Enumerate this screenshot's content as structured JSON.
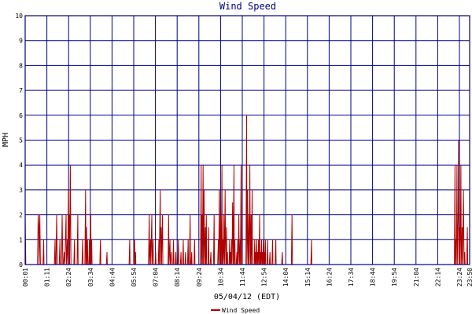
{
  "chart_data": {
    "type": "line",
    "title": "Wind Speed",
    "xlabel": "05/04/12 (EDT)",
    "ylabel": "MPH",
    "ylim": [
      0,
      10
    ],
    "yticks": [
      "0",
      "1",
      "2",
      "3",
      "4",
      "5",
      "6",
      "7",
      "8",
      "9",
      "10"
    ],
    "xticks": [
      "00:01",
      "01:11",
      "02:24",
      "03:34",
      "04:44",
      "05:54",
      "07:04",
      "08:14",
      "09:24",
      "10:34",
      "11:44",
      "12:54",
      "14:04",
      "15:14",
      "16:24",
      "17:34",
      "18:44",
      "19:54",
      "21:04",
      "22:14",
      "23:24",
      "23:50"
    ],
    "grid": true,
    "legend_position": "bottom-center",
    "colors": {
      "series": "#b00000",
      "grid": "#000080",
      "title": "#000080"
    },
    "series": [
      {
        "name": "Wind Speed",
        "x_unit": "minutes since 00:01",
        "points": [
          [
            0,
            2
          ],
          [
            2,
            0
          ],
          [
            38,
            0
          ],
          [
            40,
            2
          ],
          [
            42,
            1.5
          ],
          [
            43,
            0
          ],
          [
            45,
            2
          ],
          [
            47,
            0
          ],
          [
            55,
            0
          ],
          [
            57,
            1
          ],
          [
            58,
            0
          ],
          [
            90,
            0
          ],
          [
            92,
            1
          ],
          [
            93,
            0
          ],
          [
            95,
            0
          ],
          [
            97,
            2
          ],
          [
            99,
            0
          ],
          [
            105,
            0
          ],
          [
            107,
            1
          ],
          [
            108,
            0
          ],
          [
            112,
            0
          ],
          [
            114,
            2
          ],
          [
            116,
            0
          ],
          [
            118,
            0
          ],
          [
            120,
            0.5
          ],
          [
            122,
            0
          ],
          [
            126,
            2
          ],
          [
            127,
            0
          ],
          [
            130,
            1
          ],
          [
            131,
            0
          ],
          [
            133,
            3
          ],
          [
            134,
            1
          ],
          [
            136,
            2
          ],
          [
            137,
            0
          ],
          [
            139,
            4
          ],
          [
            140,
            2
          ],
          [
            141,
            0
          ],
          [
            150,
            0
          ],
          [
            152,
            1
          ],
          [
            153,
            0
          ],
          [
            160,
            0
          ],
          [
            162,
            2
          ],
          [
            163,
            0
          ],
          [
            175,
            0
          ],
          [
            177,
            1
          ],
          [
            178,
            0
          ],
          [
            184,
            0
          ],
          [
            186,
            3
          ],
          [
            187,
            0
          ],
          [
            189,
            1.5
          ],
          [
            190,
            0
          ],
          [
            192,
            1
          ],
          [
            193,
            0
          ],
          [
            196,
            0
          ],
          [
            198,
            1
          ],
          [
            199,
            0
          ],
          [
            202,
            2
          ],
          [
            203,
            0
          ],
          [
            205,
            1
          ],
          [
            206,
            0
          ],
          [
            230,
            0
          ],
          [
            232,
            1
          ],
          [
            233,
            0
          ],
          [
            250,
            0
          ],
          [
            252,
            0.5
          ],
          [
            253,
            0
          ],
          [
            320,
            0
          ],
          [
            322,
            1
          ],
          [
            323,
            0
          ],
          [
            335,
            0
          ],
          [
            337,
            1
          ],
          [
            338,
            0
          ],
          [
            340,
            0.5
          ],
          [
            341,
            0
          ],
          [
            380,
            0
          ],
          [
            382,
            2
          ],
          [
            383,
            0
          ],
          [
            386,
            1
          ],
          [
            387,
            0
          ],
          [
            390,
            2
          ],
          [
            391,
            0
          ],
          [
            394,
            1
          ],
          [
            395,
            0
          ],
          [
            400,
            0
          ],
          [
            402,
            0.5
          ],
          [
            403,
            0
          ],
          [
            410,
            0
          ],
          [
            412,
            1
          ],
          [
            413,
            0
          ],
          [
            416,
            3
          ],
          [
            417,
            0
          ],
          [
            419,
            1.5
          ],
          [
            420,
            0
          ],
          [
            423,
            2
          ],
          [
            424,
            0
          ],
          [
            440,
            0
          ],
          [
            442,
            2
          ],
          [
            443,
            0
          ],
          [
            446,
            1
          ],
          [
            447,
            0
          ],
          [
            450,
            0.5
          ],
          [
            451,
            0
          ],
          [
            455,
            0
          ],
          [
            457,
            1
          ],
          [
            458,
            0
          ],
          [
            462,
            0
          ],
          [
            464,
            0.5
          ],
          [
            465,
            0
          ],
          [
            470,
            0
          ],
          [
            472,
            1
          ],
          [
            473,
            0
          ],
          [
            478,
            0
          ],
          [
            480,
            0.5
          ],
          [
            481,
            0
          ],
          [
            485,
            0
          ],
          [
            487,
            1
          ],
          [
            488,
            0
          ],
          [
            492,
            0
          ],
          [
            494,
            0.5
          ],
          [
            495,
            0
          ],
          [
            500,
            0
          ],
          [
            502,
            1
          ],
          [
            503,
            0
          ],
          [
            506,
            0
          ],
          [
            508,
            2
          ],
          [
            509,
            0
          ],
          [
            511,
            0
          ],
          [
            513,
            0.5
          ],
          [
            514,
            0
          ],
          [
            520,
            0
          ],
          [
            522,
            1
          ],
          [
            523,
            0
          ],
          [
            540,
            0
          ],
          [
            542,
            4
          ],
          [
            543,
            0
          ],
          [
            545,
            2
          ],
          [
            546,
            0
          ],
          [
            548,
            4
          ],
          [
            549,
            0
          ],
          [
            551,
            3
          ],
          [
            552,
            1
          ],
          [
            553,
            0
          ],
          [
            555,
            1.5
          ],
          [
            556,
            0
          ],
          [
            558,
            2
          ],
          [
            559,
            0
          ],
          [
            563,
            0
          ],
          [
            565,
            1.5
          ],
          [
            566,
            0
          ],
          [
            570,
            0
          ],
          [
            572,
            0.5
          ],
          [
            573,
            0
          ],
          [
            580,
            0
          ],
          [
            582,
            2
          ],
          [
            583,
            0
          ],
          [
            593,
            0
          ],
          [
            595,
            1
          ],
          [
            596,
            0
          ],
          [
            598,
            3
          ],
          [
            599,
            1
          ],
          [
            600,
            0
          ],
          [
            602,
            2
          ],
          [
            603,
            0.5
          ],
          [
            604,
            0
          ],
          [
            606,
            4
          ],
          [
            607,
            0
          ],
          [
            609,
            1
          ],
          [
            610,
            0
          ],
          [
            612,
            2
          ],
          [
            613,
            0.5
          ],
          [
            614,
            0
          ],
          [
            616,
            3
          ],
          [
            617,
            1
          ],
          [
            618,
            0
          ],
          [
            620,
            1.5
          ],
          [
            621,
            0
          ],
          [
            623,
            0.5
          ],
          [
            624,
            0
          ],
          [
            628,
            0
          ],
          [
            630,
            1
          ],
          [
            631,
            0
          ],
          [
            633,
            0.5
          ],
          [
            634,
            0
          ],
          [
            636,
            1
          ],
          [
            637,
            0
          ],
          [
            639,
            2.5
          ],
          [
            640,
            1
          ],
          [
            641,
            0
          ],
          [
            643,
            4
          ],
          [
            644,
            0
          ],
          [
            646,
            1
          ],
          [
            647,
            0
          ],
          [
            650,
            0
          ],
          [
            652,
            0.5
          ],
          [
            653,
            0
          ],
          [
            655,
            1
          ],
          [
            656,
            0
          ],
          [
            658,
            2
          ],
          [
            659,
            0.5
          ],
          [
            660,
            0
          ],
          [
            662,
            1
          ],
          [
            663,
            0
          ],
          [
            665,
            4
          ],
          [
            666,
            0
          ],
          [
            668,
            0.5
          ],
          [
            669,
            0
          ],
          [
            680,
            0
          ],
          [
            682,
            6
          ],
          [
            683,
            0
          ],
          [
            685,
            3
          ],
          [
            686,
            1
          ],
          [
            687,
            0
          ],
          [
            689,
            2
          ],
          [
            690,
            0
          ],
          [
            692,
            4
          ],
          [
            693,
            1.5
          ],
          [
            694,
            0
          ],
          [
            696,
            2
          ],
          [
            697,
            0
          ],
          [
            699,
            3
          ],
          [
            700,
            0
          ],
          [
            705,
            0
          ],
          [
            707,
            1
          ],
          [
            708,
            0
          ],
          [
            710,
            0.5
          ],
          [
            711,
            0
          ],
          [
            713,
            1
          ],
          [
            714,
            0
          ],
          [
            716,
            0.5
          ],
          [
            717,
            0
          ],
          [
            719,
            1
          ],
          [
            720,
            0
          ],
          [
            722,
            2
          ],
          [
            723,
            0
          ],
          [
            725,
            0.5
          ],
          [
            726,
            0
          ],
          [
            728,
            1
          ],
          [
            729,
            0
          ],
          [
            731,
            0.5
          ],
          [
            732,
            0
          ],
          [
            734,
            1
          ],
          [
            735,
            0
          ],
          [
            737,
            0.5
          ],
          [
            738,
            0
          ],
          [
            740,
            1
          ],
          [
            741,
            0
          ],
          [
            745,
            0
          ],
          [
            747,
            1
          ],
          [
            748,
            0
          ],
          [
            752,
            0
          ],
          [
            754,
            0.5
          ],
          [
            755,
            0
          ],
          [
            760,
            0
          ],
          [
            762,
            1
          ],
          [
            763,
            0
          ],
          [
            770,
            0
          ],
          [
            772,
            1
          ],
          [
            773,
            0
          ],
          [
            790,
            0
          ],
          [
            792,
            0.5
          ],
          [
            793,
            0
          ],
          [
            820,
            0
          ],
          [
            822,
            2
          ],
          [
            823,
            0
          ],
          [
            880,
            0
          ],
          [
            882,
            1
          ],
          [
            883,
            0
          ],
          [
            1322,
            0
          ],
          [
            1324,
            4
          ],
          [
            1325,
            0
          ],
          [
            1327,
            1
          ],
          [
            1328,
            0
          ],
          [
            1330,
            4
          ],
          [
            1331,
            1
          ],
          [
            1332,
            0
          ],
          [
            1334,
            2.5
          ],
          [
            1335,
            5
          ],
          [
            1336,
            2
          ],
          [
            1337,
            0
          ],
          [
            1339,
            1.5
          ],
          [
            1340,
            0
          ],
          [
            1342,
            4
          ],
          [
            1343,
            1
          ],
          [
            1344,
            0
          ],
          [
            1346,
            1.5
          ],
          [
            1347,
            0
          ],
          [
            1350,
            3
          ],
          [
            1351,
            1
          ],
          [
            1352,
            0
          ],
          [
            1354,
            0.5
          ],
          [
            1355,
            0
          ],
          [
            1360,
            0
          ],
          [
            1362,
            1.5
          ],
          [
            1363,
            0
          ],
          [
            1369,
            0
          ]
        ]
      }
    ]
  }
}
